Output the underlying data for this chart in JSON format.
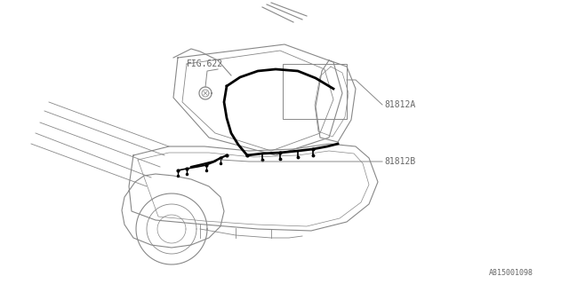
{
  "bg_color": "#ffffff",
  "line_color": "#888888",
  "thick_line_color": "#000000",
  "label_81812A": "81812A",
  "label_81812B": "81812B",
  "label_FIG622": "FIG.622",
  "label_bottom": "A815001098",
  "font_family": "monospace",
  "label_color": "#666666",
  "fig_width": 6.4,
  "fig_height": 3.2,
  "dpi": 100
}
